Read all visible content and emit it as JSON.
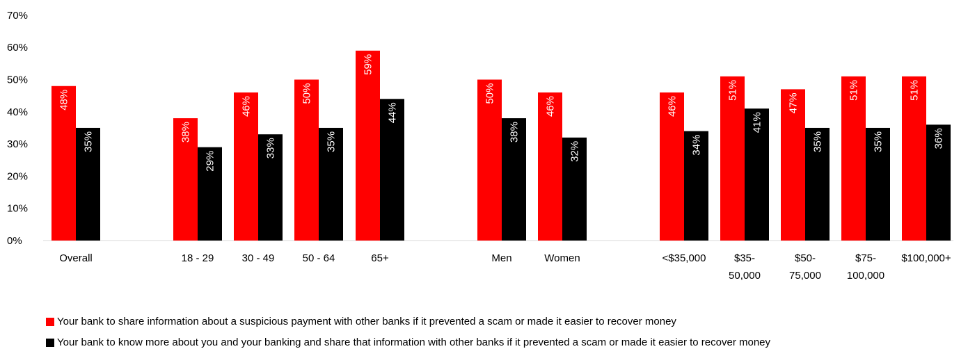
{
  "chart_data": {
    "type": "bar",
    "ylim": [
      0,
      70
    ],
    "yticks": [
      "0%",
      "10%",
      "20%",
      "30%",
      "40%",
      "50%",
      "60%",
      "70%"
    ],
    "groups": [
      {
        "categories": [
          {
            "label": [
              "Overall"
            ],
            "values": [
              48,
              35
            ],
            "labels": [
              "48%",
              "35%"
            ]
          }
        ]
      },
      {
        "categories": [
          {
            "label": [
              "18 - 29"
            ],
            "values": [
              38,
              29
            ],
            "labels": [
              "38%",
              "29%"
            ]
          },
          {
            "label": [
              "30 - 49"
            ],
            "values": [
              46,
              33
            ],
            "labels": [
              "46%",
              "33%"
            ]
          },
          {
            "label": [
              "50 - 64"
            ],
            "values": [
              50,
              35
            ],
            "labels": [
              "50%",
              "35%"
            ]
          },
          {
            "label": [
              "65+"
            ],
            "values": [
              59,
              44
            ],
            "labels": [
              "59%",
              "44%"
            ]
          }
        ]
      },
      {
        "categories": [
          {
            "label": [
              "Men"
            ],
            "values": [
              50,
              38
            ],
            "labels": [
              "50%",
              "38%"
            ]
          },
          {
            "label": [
              "Women"
            ],
            "values": [
              46,
              32
            ],
            "labels": [
              "46%",
              "32%"
            ]
          }
        ]
      },
      {
        "categories": [
          {
            "label": [
              "<$35,000"
            ],
            "values": [
              46,
              34
            ],
            "labels": [
              "46%",
              "34%"
            ]
          },
          {
            "label": [
              "$35-",
              "50,000"
            ],
            "values": [
              51,
              41
            ],
            "labels": [
              "51%",
              "41%"
            ]
          },
          {
            "label": [
              "$50-",
              "75,000"
            ],
            "values": [
              47,
              35
            ],
            "labels": [
              "47%",
              "35%"
            ]
          },
          {
            "label": [
              "$75-",
              "100,000"
            ],
            "values": [
              51,
              35
            ],
            "labels": [
              "51%",
              "35%"
            ]
          },
          {
            "label": [
              "$100,000+"
            ],
            "values": [
              51,
              36
            ],
            "labels": [
              "51%",
              "36%"
            ]
          }
        ]
      }
    ],
    "series": [
      {
        "name": "Your bank to share information about a suspicious payment with other banks if it prevented a scam or made it easier to recover money",
        "color": "#ff0000"
      },
      {
        "name": "Your bank to know more about you and your banking and share that information with other banks if it prevented a scam or made it easier to recover money",
        "color": "#000000"
      }
    ],
    "legend_position": "bottom",
    "grid": false
  }
}
